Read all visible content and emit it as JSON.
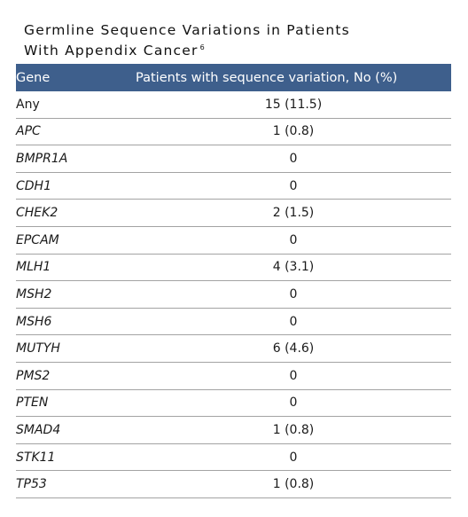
{
  "title": {
    "line1": "Germline Sequence Variations in Patients",
    "line2": "With Appendix Cancer",
    "ref": "6"
  },
  "table": {
    "headers": {
      "gene": "Gene",
      "variation": "Patients with sequence variation, No (%)"
    },
    "rows": [
      {
        "gene": "Any",
        "value": "15 (11.5)"
      },
      {
        "gene": "APC",
        "value": "1 (0.8)"
      },
      {
        "gene": "BMPR1A",
        "value": "0"
      },
      {
        "gene": "CDH1",
        "value": "0"
      },
      {
        "gene": "CHEK2",
        "value": "2 (1.5)"
      },
      {
        "gene": "EPCAM",
        "value": "0"
      },
      {
        "gene": "MLH1",
        "value": "4 (3.1)"
      },
      {
        "gene": "MSH2",
        "value": "0"
      },
      {
        "gene": "MSH6",
        "value": "0"
      },
      {
        "gene": "MUTYH",
        "value": "6 (4.6)"
      },
      {
        "gene": "PMS2",
        "value": "0"
      },
      {
        "gene": "PTEN",
        "value": "0"
      },
      {
        "gene": "SMAD4",
        "value": "1 (0.8)"
      },
      {
        "gene": "STK11",
        "value": "0"
      },
      {
        "gene": "TP53",
        "value": "1 (0.8)"
      }
    ]
  },
  "colors": {
    "header_background": "#3e5f8c",
    "header_text": "#ffffff",
    "row_divider": "#a3a3a3"
  }
}
